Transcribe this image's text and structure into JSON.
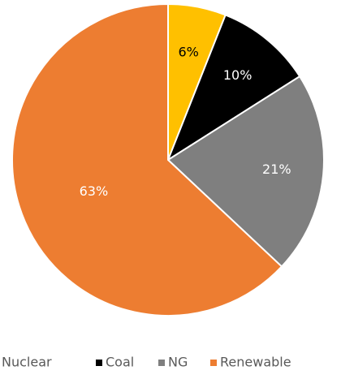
{
  "chart_data": {
    "type": "pie",
    "categories": [
      "Nuclear",
      "Coal",
      "NG",
      "Renewable"
    ],
    "values": [
      6,
      10,
      21,
      63
    ],
    "value_labels": [
      "6%",
      "10%",
      "21%",
      "63%"
    ],
    "colors": [
      "#ffc000",
      "#000000",
      "#7f7f7f",
      "#ed7d31"
    ],
    "legend": "bottom"
  }
}
